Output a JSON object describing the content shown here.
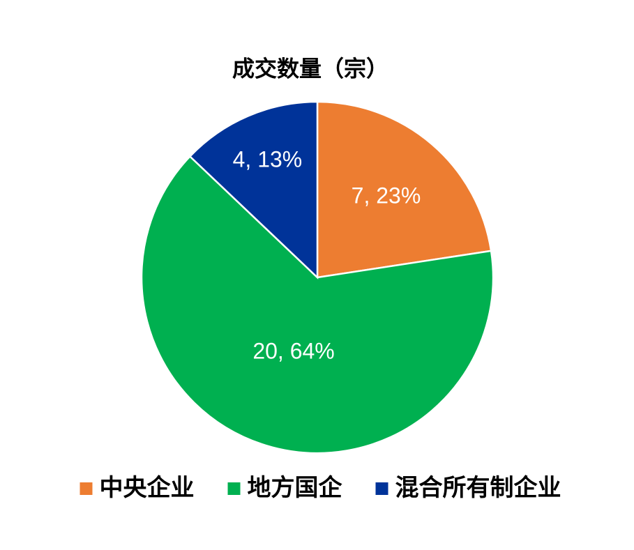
{
  "chart_data": {
    "type": "pie",
    "title": "成交数量（宗）",
    "categories": [
      "中央企业",
      "地方国企",
      "混合所有制企业"
    ],
    "values": [
      7,
      20,
      4
    ],
    "value_labels": [
      "7, 23%",
      "20, 64%",
      "4, 13%"
    ],
    "colors": [
      "#ED7D31",
      "#00B050",
      "#003399"
    ],
    "legend": "bottom"
  }
}
